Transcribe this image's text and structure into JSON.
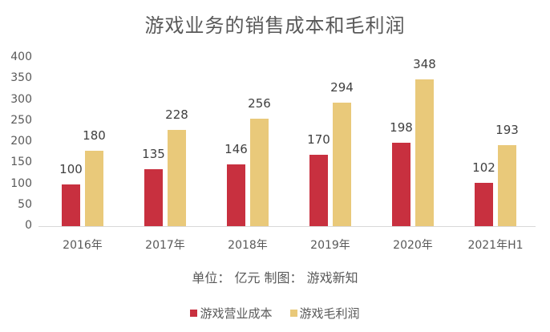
{
  "chart_data": {
    "type": "bar",
    "title": "游戏业务的销售成本和毛利润",
    "subtitle": "单位：亿元  制图：游戏新知",
    "xlabel": "",
    "ylabel": "",
    "ylim": [
      0,
      400
    ],
    "yticks": [
      0,
      50,
      100,
      150,
      200,
      250,
      300,
      350,
      400
    ],
    "grid": false,
    "legend_position": "bottom",
    "categories": [
      "2016年",
      "2017年",
      "2018年",
      "2019年",
      "2020年",
      "2021年H1"
    ],
    "series": [
      {
        "name": "游戏营业成本",
        "color": "#c8303f",
        "values": [
          100,
          135,
          146,
          170,
          198,
          102
        ]
      },
      {
        "name": "游戏毛利润",
        "color": "#e9c97a",
        "values": [
          180,
          228,
          256,
          294,
          348,
          193
        ]
      }
    ]
  },
  "labels": {
    "title": "游戏业务的销售成本和毛利润",
    "note": "单位：  亿元  制图：  游戏新知",
    "legend_cost": "游戏营业成本",
    "legend_profit": "游戏毛利润"
  }
}
